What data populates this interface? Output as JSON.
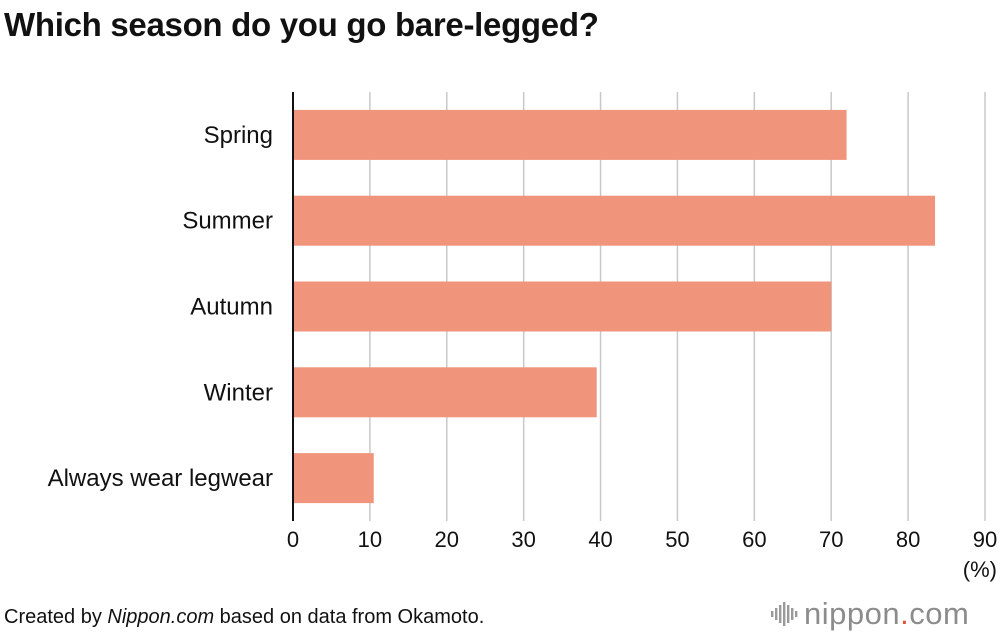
{
  "title": "Which season do you go bare-legged?",
  "footer": {
    "prefix": "Created by ",
    "source_name": "Nippon.com",
    "suffix": " based on data from Okamoto."
  },
  "logo": {
    "name": "nippon.com",
    "icon": "nippon-logo-mark-icon"
  },
  "colors": {
    "bar": "#f0957b",
    "grid": "#c8c8c8",
    "axis": "#111111",
    "logo_text": "#8c8c8c",
    "logo_dot": "#e0543f"
  },
  "chart_data": {
    "type": "bar",
    "orientation": "horizontal",
    "categories": [
      "Spring",
      "Summer",
      "Autumn",
      "Winter",
      "Always wear legwear"
    ],
    "values": [
      72,
      83.5,
      70,
      39.5,
      10.5
    ],
    "xlim": [
      0,
      90
    ],
    "xticks": [
      0,
      10,
      20,
      30,
      40,
      50,
      60,
      70,
      80,
      90
    ],
    "unit_label": "(%)",
    "grid": true
  }
}
